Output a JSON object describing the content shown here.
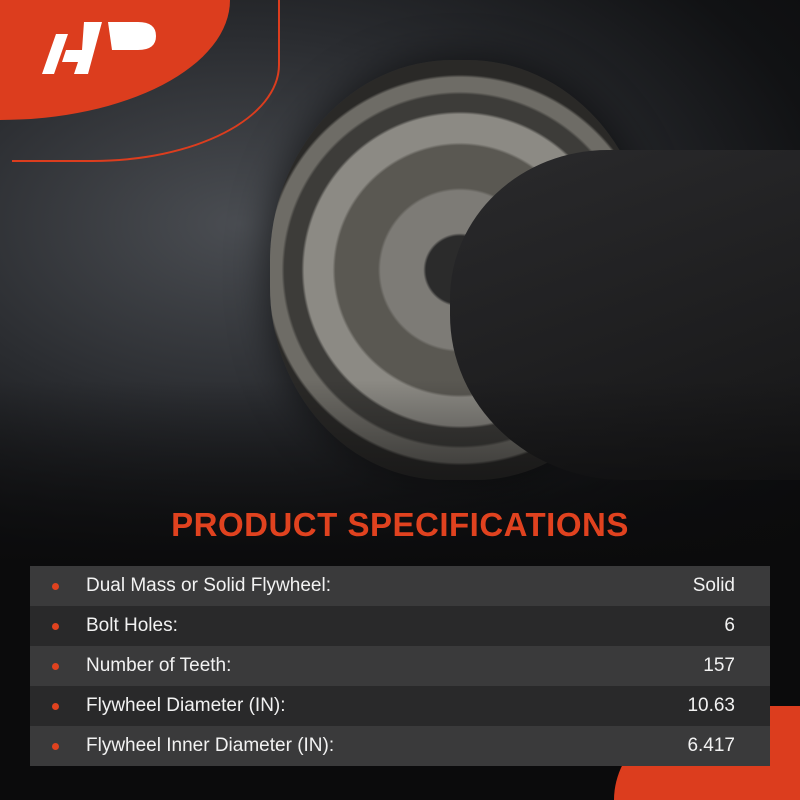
{
  "brand": {
    "logo_text": "A-P",
    "accent": "#dc3d1e"
  },
  "title": "PRODUCT SPECIFICATIONS",
  "specs": [
    {
      "label": "Dual Mass or Solid Flywheel:",
      "value": "Solid"
    },
    {
      "label": "Bolt Holes:",
      "value": "6"
    },
    {
      "label": "Number of Teeth:",
      "value": "157"
    },
    {
      "label": "Flywheel Diameter (IN):",
      "value": "10.63"
    },
    {
      "label": "Flywheel Inner Diameter (IN):",
      "value": "6.417"
    }
  ]
}
